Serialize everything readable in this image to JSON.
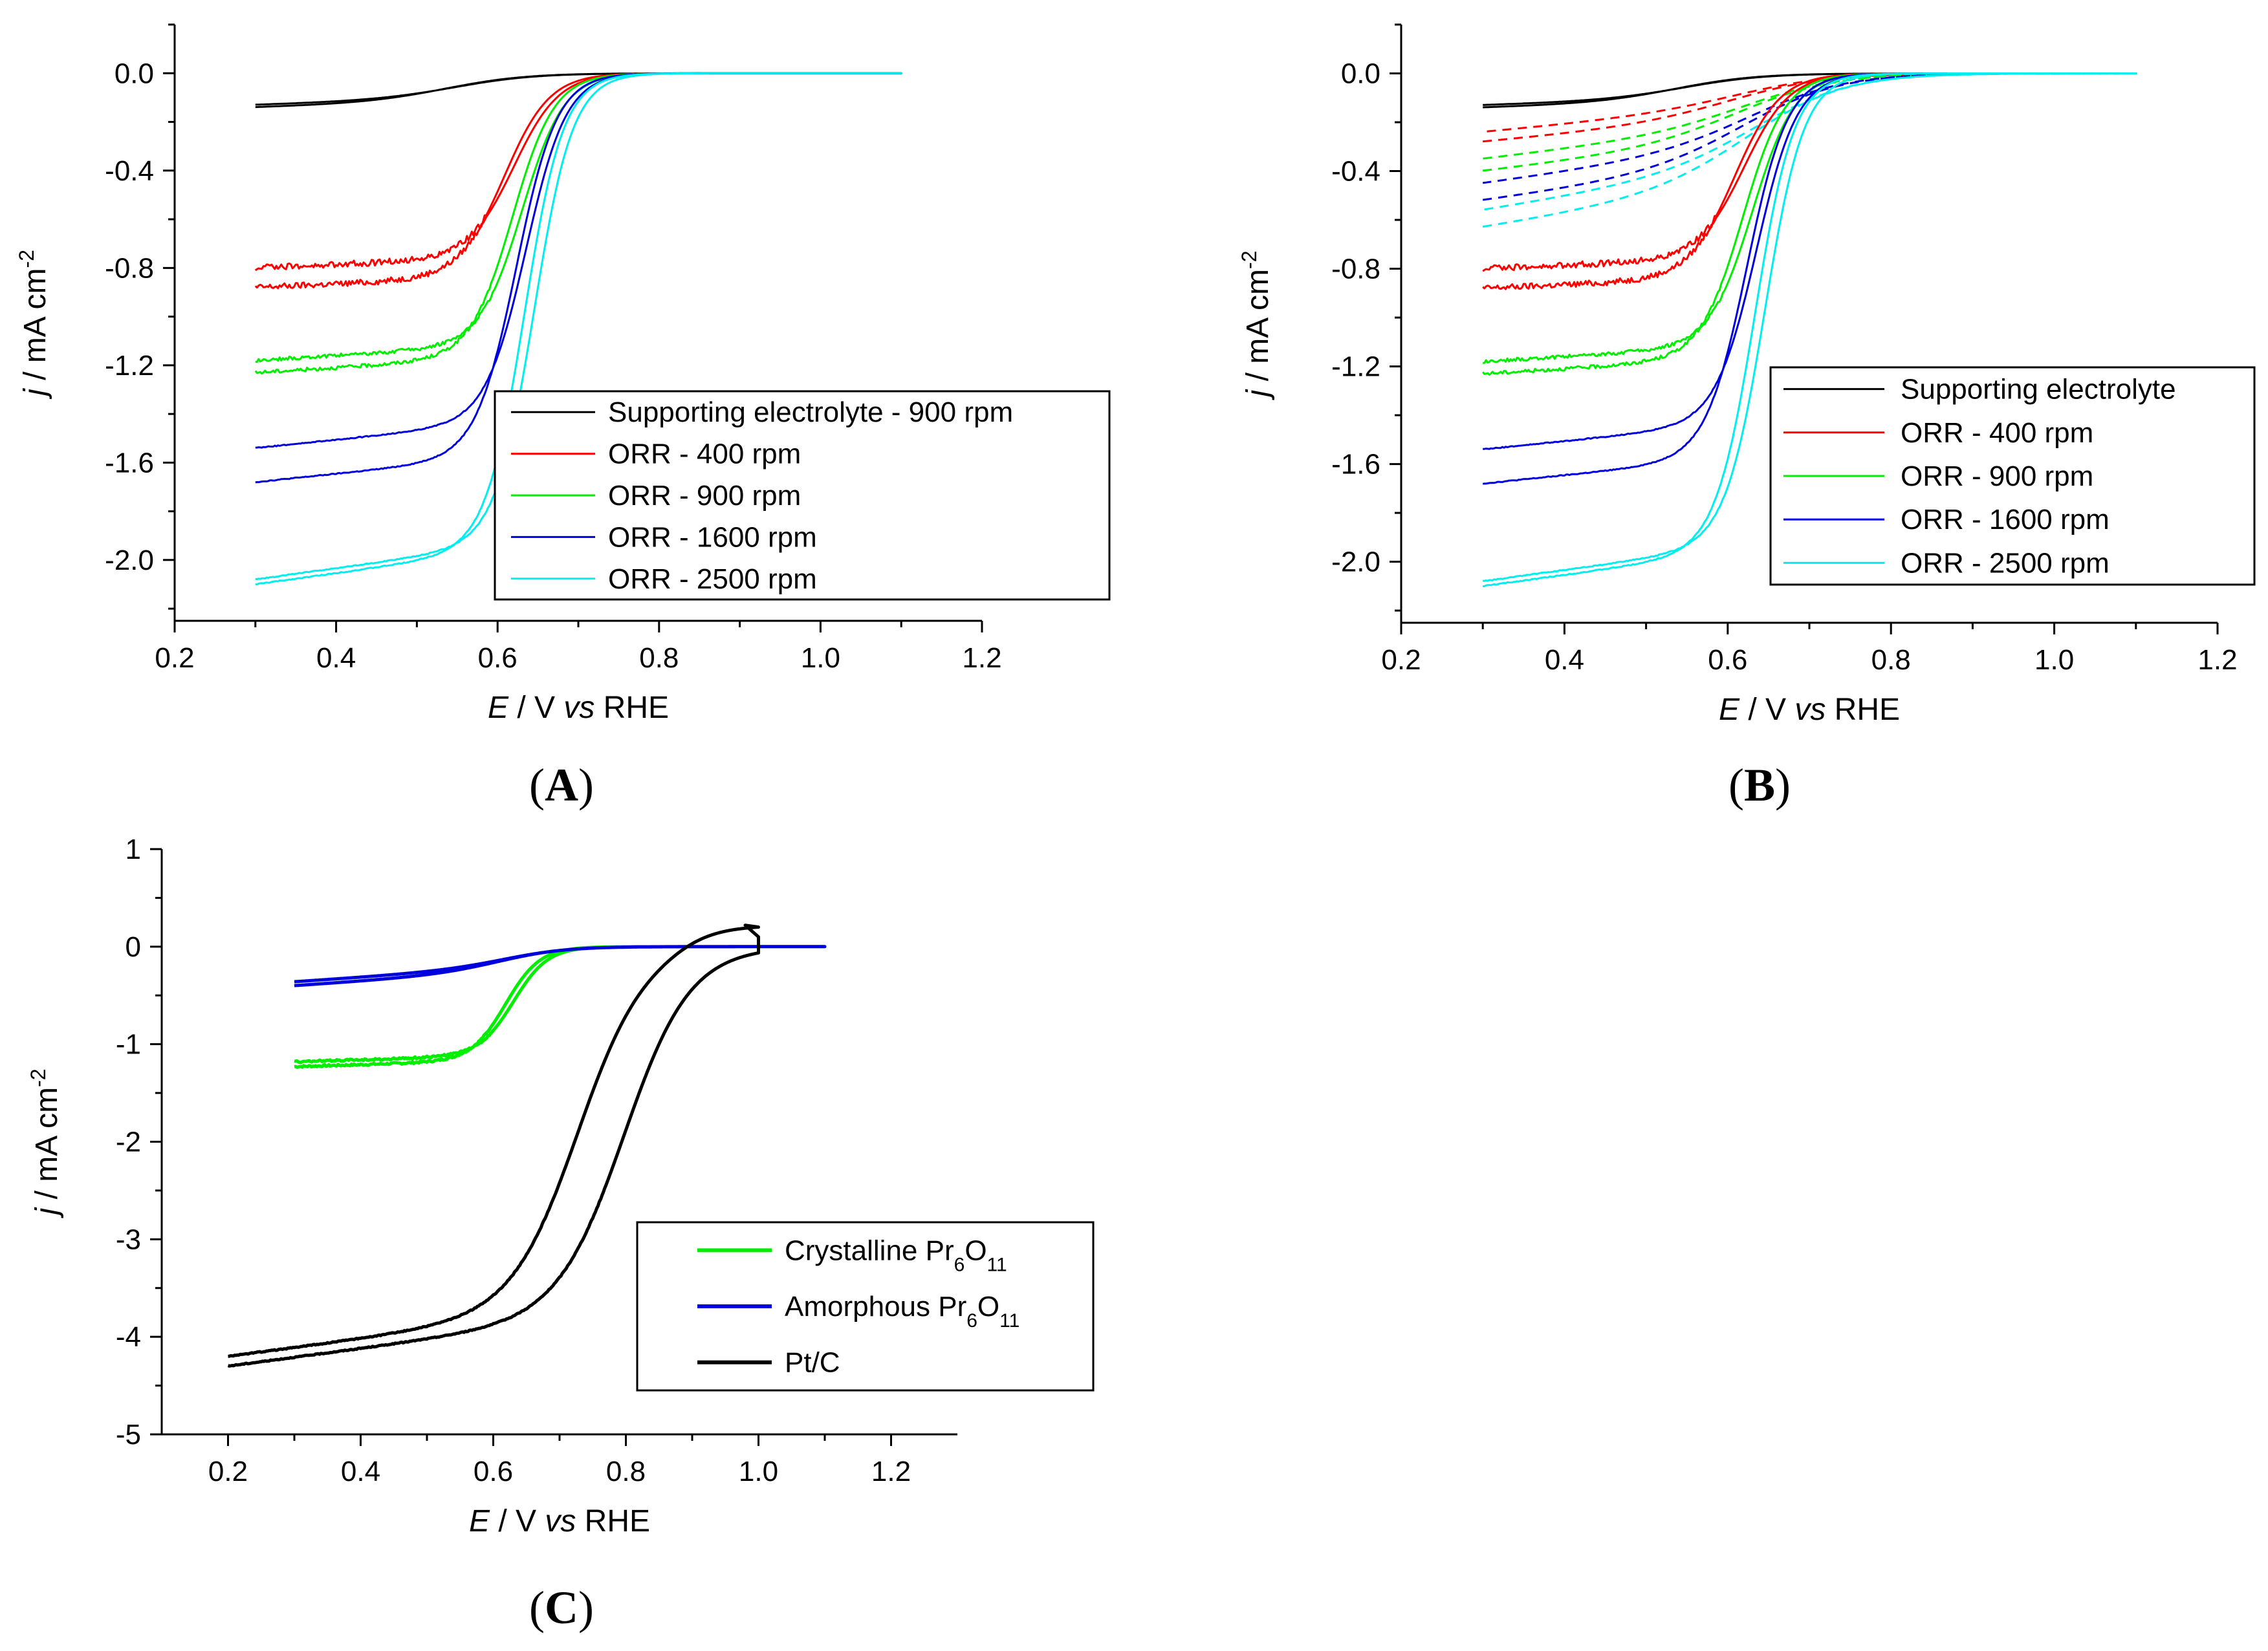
{
  "figure": {
    "panel_labels": [
      "A",
      "B",
      "C"
    ]
  },
  "chart_data": [
    {
      "id": "A",
      "type": "line",
      "title": "",
      "xlabel": {
        "italic": "E",
        "plain": " / V ",
        "italic2": "vs",
        "plain2": " RHE"
      },
      "ylabel": {
        "italic": "j",
        "plain": " / mA cm",
        "sup": "-2"
      },
      "xlim": [
        0.2,
        1.2
      ],
      "ylim": [
        -2.25,
        0.2
      ],
      "xticks": [
        "0.2",
        "0.4",
        "0.6",
        "0.8",
        "1.0",
        "1.2"
      ],
      "xtick_values": [
        0.2,
        0.4,
        0.6,
        0.8,
        1.0,
        1.2
      ],
      "yticks": [
        "0.0",
        "-0.4",
        "-0.8",
        "-1.2",
        "-1.6",
        "-2.0"
      ],
      "ytick_values": [
        0.0,
        -0.4,
        -0.8,
        -1.2,
        -1.6,
        -2.0
      ],
      "legend_position": "lower-right",
      "series": [
        {
          "name": "Supporting electrolyte - 900 rpm",
          "color": "#000000",
          "style": "solid",
          "e_start": 0.3,
          "e_end": 1.1,
          "j_cathodic": -0.14,
          "j_anodic": -0.13,
          "slope": 0.1,
          "e_half": 0.55,
          "width": 0.05
        },
        {
          "name": "ORR - 400 rpm",
          "color": "#ff0000",
          "style": "solid",
          "e_start": 0.3,
          "e_end": 1.1,
          "j_cathodic": -0.88,
          "j_anodic": -0.8,
          "slope": 0.14,
          "e_half": 0.615,
          "width": 0.028,
          "noise": 0.025
        },
        {
          "name": "ORR - 900 rpm",
          "color": "#00ee00",
          "style": "solid",
          "e_start": 0.3,
          "e_end": 1.1,
          "j_cathodic": -1.23,
          "j_anodic": -1.18,
          "slope": 0.2,
          "e_half": 0.625,
          "width": 0.026,
          "noise": 0.015
        },
        {
          "name": "ORR - 1600 rpm",
          "color": "#0000dd",
          "style": "solid",
          "e_start": 0.3,
          "e_end": 1.1,
          "j_cathodic": -1.68,
          "j_anodic": -1.54,
          "slope": 0.34,
          "e_half": 0.63,
          "width": 0.025,
          "noise": 0.004
        },
        {
          "name": "ORR - 2500 rpm",
          "color": "#00eeee",
          "style": "solid",
          "e_start": 0.3,
          "e_end": 1.1,
          "j_cathodic": -2.1,
          "j_anodic": -2.08,
          "slope": 0.46,
          "e_half": 0.64,
          "width": 0.024,
          "noise": 0.004
        }
      ]
    },
    {
      "id": "B",
      "type": "line",
      "title": "",
      "xlabel": {
        "italic": "E",
        "plain": " / V ",
        "italic2": "vs",
        "plain2": " RHE"
      },
      "ylabel": {
        "italic": "j",
        "plain": " / mA cm",
        "sup": "-2"
      },
      "xlim": [
        0.2,
        1.2
      ],
      "ylim": [
        -2.25,
        0.2
      ],
      "xticks": [
        "0.2",
        "0.4",
        "0.6",
        "0.8",
        "1.0",
        "1.2"
      ],
      "xtick_values": [
        0.2,
        0.4,
        0.6,
        0.8,
        1.0,
        1.2
      ],
      "yticks": [
        "0.0",
        "-0.4",
        "-0.8",
        "-1.2",
        "-1.6",
        "-2.0"
      ],
      "ytick_values": [
        0.0,
        -0.4,
        -0.8,
        -1.2,
        -1.6,
        -2.0
      ],
      "legend_position": "lower-right",
      "series": [
        {
          "name": "Supporting electrolyte",
          "color": "#000000",
          "style": "solid",
          "e_start": 0.3,
          "e_end": 1.1,
          "j_cathodic": -0.14,
          "j_anodic": -0.13,
          "slope": 0.1,
          "e_half": 0.55,
          "width": 0.05
        },
        {
          "name": "ORR - 400 rpm",
          "color": "#ff0000",
          "style": "solid",
          "e_start": 0.3,
          "e_end": 1.1,
          "j_cathodic": -0.88,
          "j_anodic": -0.8,
          "slope": 0.14,
          "e_half": 0.615,
          "width": 0.028,
          "noise": 0.025
        },
        {
          "name": "ORR - 900 rpm",
          "color": "#00ee00",
          "style": "solid",
          "e_start": 0.3,
          "e_end": 1.1,
          "j_cathodic": -1.23,
          "j_anodic": -1.18,
          "slope": 0.2,
          "e_half": 0.625,
          "width": 0.026,
          "noise": 0.015
        },
        {
          "name": "ORR - 1600 rpm",
          "color": "#0000dd",
          "style": "solid",
          "e_start": 0.3,
          "e_end": 1.1,
          "j_cathodic": -1.68,
          "j_anodic": -1.54,
          "slope": 0.34,
          "e_half": 0.63,
          "width": 0.025,
          "noise": 0.004
        },
        {
          "name": "ORR - 2500 rpm",
          "color": "#00eeee",
          "style": "solid",
          "e_start": 0.3,
          "e_end": 1.1,
          "j_cathodic": -2.1,
          "j_anodic": -2.08,
          "slope": 0.46,
          "e_half": 0.64,
          "width": 0.024,
          "noise": 0.004
        }
      ],
      "dashed_series": [
        {
          "color": "#ff0000",
          "style": "dashed",
          "e_start": 0.3,
          "e_end": 1.1,
          "j_cathodic": -0.28,
          "j_anodic": -0.24,
          "slope": 0.3,
          "e_half": 0.63,
          "width": 0.06
        },
        {
          "color": "#00ee00",
          "style": "dashed",
          "e_start": 0.3,
          "e_end": 1.1,
          "j_cathodic": -0.4,
          "j_anodic": -0.35,
          "slope": 0.38,
          "e_half": 0.635,
          "width": 0.06
        },
        {
          "color": "#0000dd",
          "style": "dashed",
          "e_start": 0.3,
          "e_end": 1.1,
          "j_cathodic": -0.52,
          "j_anodic": -0.45,
          "slope": 0.44,
          "e_half": 0.64,
          "width": 0.06
        },
        {
          "color": "#00eeee",
          "style": "dashed",
          "e_start": 0.3,
          "e_end": 1.1,
          "j_cathodic": -0.63,
          "j_anodic": -0.56,
          "slope": 0.52,
          "e_half": 0.645,
          "width": 0.06
        }
      ]
    },
    {
      "id": "C",
      "type": "line",
      "title": "",
      "xlabel": {
        "italic": "E",
        "plain": " / V ",
        "italic2": "vs",
        "plain2": " RHE"
      },
      "ylabel": {
        "italic": "j",
        "plain": " / mA cm",
        "sup": "-2"
      },
      "xlim": [
        0.1,
        1.3
      ],
      "ylim": [
        -5,
        1
      ],
      "xticks": [
        "0.2",
        "0.4",
        "0.6",
        "0.8",
        "1.0",
        "1.2"
      ],
      "xtick_values": [
        0.2,
        0.4,
        0.6,
        0.8,
        1.0,
        1.2
      ],
      "yticks": [
        "1",
        "0",
        "-1",
        "-2",
        "-3",
        "-4",
        "-5"
      ],
      "ytick_values": [
        1,
        0,
        -1,
        -2,
        -3,
        -4,
        -5
      ],
      "legend_position": "lower-right",
      "series": [
        {
          "name": "Crystalline Pr",
          "sub1": "6",
          "name2": "O",
          "sub2": "11",
          "color": "#00ee00",
          "style": "solid",
          "e_start": 0.3,
          "e_end": 1.1,
          "j_cathodic": -1.23,
          "j_anodic": -1.18,
          "slope": 0.2,
          "e_half": 0.625,
          "width": 0.026,
          "noise": 0.02
        },
        {
          "name": "Amorphous Pr",
          "sub1": "6",
          "name2": "O",
          "sub2": "11",
          "color": "#0000dd",
          "style": "solid",
          "e_start": 0.3,
          "e_end": 1.1,
          "j_cathodic": -0.4,
          "j_anodic": -0.36,
          "slope": 0.45,
          "e_half": 0.63,
          "width": 0.05
        },
        {
          "name": "Pt/C",
          "name2": "",
          "color": "#000000",
          "style": "solid",
          "e_start": 0.2,
          "e_end": 1.0,
          "j_cathodic": -4.3,
          "j_anodic": -4.2,
          "slope": 0.9,
          "e_half_cathodic": 0.8,
          "e_half_anodic": 0.73,
          "width": 0.05,
          "j_top_anodic": 0.22,
          "noise": 0.01
        }
      ]
    }
  ]
}
